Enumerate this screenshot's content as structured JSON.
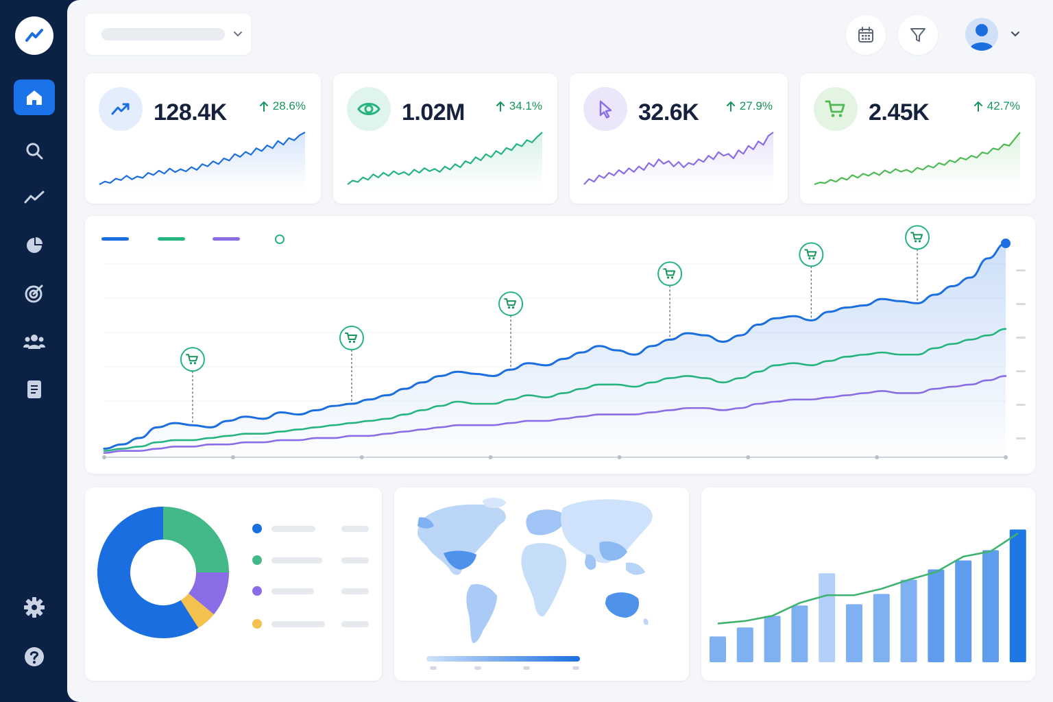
{
  "sidebar": {
    "logo_icon": "trend-line-icon",
    "items": [
      {
        "name": "home",
        "icon": "home-icon",
        "active": true
      },
      {
        "name": "search",
        "icon": "search-icon"
      },
      {
        "name": "analytics",
        "icon": "trend-icon"
      },
      {
        "name": "reports",
        "icon": "pie-chart-icon"
      },
      {
        "name": "goals",
        "icon": "target-icon"
      },
      {
        "name": "audience",
        "icon": "users-icon"
      },
      {
        "name": "documents",
        "icon": "document-icon"
      }
    ],
    "bottom_items": [
      {
        "name": "settings",
        "icon": "gear-icon"
      },
      {
        "name": "help",
        "icon": "help-icon"
      }
    ]
  },
  "header": {
    "selector_icon": "chevron-down-icon",
    "actions": [
      "calendar-icon",
      "filter-icon"
    ],
    "user_icon": "user-avatar-icon"
  },
  "colors": {
    "blue": "#1a6ee0",
    "teal": "#25b37e",
    "purple": "#8a6de6",
    "green": "#4fba55",
    "yellow": "#f4c04e",
    "sidebar": "#0b2146",
    "positive": "#17945b"
  },
  "kpis": [
    {
      "value": "128.4K",
      "change": "28.6%",
      "direction": "up",
      "icon": "trend-up-icon",
      "color": "#1a6ee0",
      "bg": "#e3edfb",
      "trend": [
        2,
        6,
        4,
        10,
        8,
        14,
        9,
        13,
        11,
        18,
        15,
        21,
        17,
        24,
        19,
        23,
        20,
        26,
        22,
        30,
        27,
        34,
        30,
        38,
        35,
        44,
        40,
        47,
        43,
        52,
        48,
        56,
        52,
        62,
        57,
        66,
        63,
        70,
        74
      ]
    },
    {
      "value": "1.02M",
      "change": "34.1%",
      "direction": "up",
      "icon": "eye-icon",
      "color": "#25b37e",
      "bg": "#dff4ec",
      "trend": [
        3,
        8,
        6,
        12,
        9,
        16,
        12,
        18,
        14,
        20,
        16,
        19,
        15,
        22,
        18,
        24,
        20,
        23,
        19,
        26,
        22,
        29,
        25,
        33,
        30,
        38,
        34,
        42,
        38,
        46,
        42,
        50,
        47,
        55,
        52,
        60,
        57,
        64,
        70
      ]
    },
    {
      "value": "32.6K",
      "change": "27.9%",
      "direction": "up",
      "icon": "cursor-icon",
      "color": "#8a6de6",
      "bg": "#ece6fb",
      "trend": [
        2,
        8,
        5,
        12,
        9,
        15,
        12,
        18,
        14,
        20,
        16,
        22,
        18,
        26,
        22,
        30,
        25,
        28,
        22,
        27,
        21,
        26,
        24,
        30,
        27,
        34,
        30,
        38,
        34,
        36,
        31,
        40,
        36,
        45,
        41,
        50,
        46,
        56,
        60
      ]
    },
    {
      "value": "2.45K",
      "change": "42.7%",
      "direction": "up",
      "icon": "cart-icon",
      "color": "#4fba55",
      "bg": "#e4f4e2",
      "trend": [
        2,
        5,
        4,
        9,
        6,
        12,
        9,
        16,
        12,
        18,
        15,
        20,
        16,
        23,
        19,
        25,
        21,
        24,
        20,
        27,
        24,
        30,
        27,
        34,
        31,
        38,
        35,
        42,
        39,
        45,
        42,
        50,
        48,
        56,
        54,
        62,
        60,
        70,
        80
      ]
    }
  ],
  "main_chart": {
    "legend": [
      {
        "color": "#1a6ee0",
        "style": "line"
      },
      {
        "color": "#25b37e",
        "style": "line"
      },
      {
        "color": "#8a6de6",
        "style": "line"
      },
      {
        "color": "#25b37e",
        "style": "circle"
      }
    ],
    "series": [
      {
        "color": "#1a6ee0",
        "values": [
          4,
          6,
          9,
          14,
          16,
          15,
          14,
          17,
          19,
          18,
          21,
          20,
          22,
          24,
          25,
          27,
          29,
          32,
          35,
          38,
          40,
          39,
          38,
          41,
          44,
          43,
          46,
          49,
          52,
          50,
          48,
          52,
          55,
          58,
          57,
          54,
          57,
          62,
          65,
          66,
          64,
          68,
          70,
          71,
          74,
          73,
          72,
          76,
          80,
          84,
          93,
          100
        ]
      },
      {
        "color": "#25b37e",
        "values": [
          3,
          4,
          5,
          7,
          8,
          8,
          9,
          10,
          11,
          11,
          12,
          13,
          14,
          15,
          16,
          17,
          18,
          20,
          22,
          24,
          26,
          25,
          25,
          27,
          29,
          28,
          30,
          32,
          34,
          34,
          33,
          35,
          37,
          38,
          37,
          35,
          37,
          40,
          43,
          44,
          43,
          45,
          47,
          48,
          49,
          48,
          48,
          51,
          53,
          55,
          57,
          60
        ]
      },
      {
        "color": "#8a6de6",
        "values": [
          2,
          3,
          3,
          4,
          5,
          5,
          6,
          6,
          7,
          7,
          8,
          8,
          9,
          9,
          10,
          10,
          11,
          12,
          13,
          14,
          15,
          15,
          15,
          16,
          17,
          17,
          18,
          19,
          20,
          20,
          20,
          21,
          22,
          23,
          23,
          22,
          23,
          25,
          26,
          27,
          27,
          28,
          29,
          30,
          31,
          30,
          30,
          32,
          33,
          34,
          36,
          38
        ]
      }
    ],
    "markers": [
      {
        "index": 5,
        "icon": "cart-icon"
      },
      {
        "index": 14,
        "icon": "cart-icon"
      },
      {
        "index": 23,
        "icon": "cart-icon"
      },
      {
        "index": 32,
        "icon": "cart-icon"
      },
      {
        "index": 40,
        "icon": "cart-icon"
      },
      {
        "index": 46,
        "icon": "cart-icon"
      }
    ],
    "x_ticks": 8,
    "y_ticks": 6
  },
  "pie": {
    "slices": [
      {
        "color": "#1a6ee0",
        "value": 59
      },
      {
        "color": "#43b98a",
        "value": 25
      },
      {
        "color": "#8a6de6",
        "value": 11
      },
      {
        "color": "#f4c04e",
        "value": 5
      }
    ]
  },
  "map": {
    "scale_from": "#cfe2fb",
    "scale_to": "#1a6ee0"
  },
  "bar_chart": {
    "type": "bar",
    "values": [
      20,
      27,
      36,
      44,
      69,
      45,
      53,
      64,
      72,
      79,
      87,
      103,
      121
    ],
    "highlight": [
      4,
      11,
      12
    ],
    "line": [
      30,
      32,
      36,
      46,
      52,
      52,
      57,
      64,
      70,
      82,
      86,
      100,
      100
    ],
    "ylim": [
      0,
      125
    ]
  }
}
